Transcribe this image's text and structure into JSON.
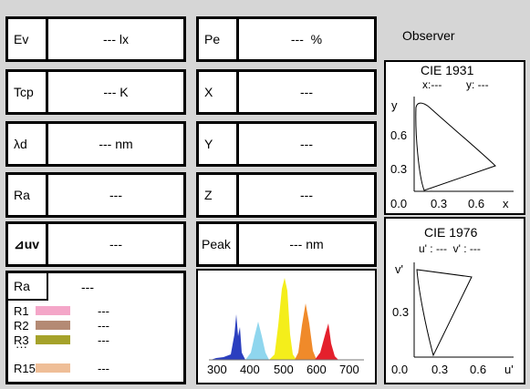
{
  "left_params": [
    {
      "label": "Ev",
      "value": "--- lx"
    },
    {
      "label": "Tcp",
      "value": "--- K"
    },
    {
      "label": "λd",
      "value": "--- nm"
    },
    {
      "label": "Ra",
      "value": "---"
    },
    {
      "label": "⊿uv",
      "value": "---"
    }
  ],
  "mid_params": [
    {
      "label": "Pe",
      "value": "---  %"
    },
    {
      "label": "X",
      "value": "---"
    },
    {
      "label": "Y",
      "value": "---"
    },
    {
      "label": "Z",
      "value": "---"
    },
    {
      "label": "Peak",
      "value": "--- nm"
    }
  ],
  "ra_panel": {
    "label": "Ra",
    "value": "---",
    "rows": [
      {
        "label": "R1",
        "value": "---",
        "color": "#f4a6c8"
      },
      {
        "label": "R2",
        "value": "---",
        "color": "#b48a74"
      },
      {
        "label": "R3",
        "value": "---",
        "color": "#a5a22a"
      },
      {
        "label": "R15",
        "value": "---",
        "color": "#efbe97"
      }
    ],
    "ellipsis": "···"
  },
  "spectrum": {
    "ticks": [
      "300",
      "400",
      "500",
      "600",
      "700"
    ],
    "colors": [
      "#2b3fbf",
      "#8fd6ee",
      "#f4ee1b",
      "#f08a2a",
      "#e4202c"
    ]
  },
  "observer": {
    "label": "Observer"
  },
  "cie1931": {
    "title": "CIE 1931",
    "readout_x": "x:---",
    "readout_y": "y: ---",
    "y_axis": "y",
    "x_axis": "x",
    "y_ticks": [
      "0.6",
      "0.3",
      "0.0"
    ],
    "x_ticks": [
      "0.3",
      "0.6"
    ]
  },
  "cie1976": {
    "title": "CIE 1976",
    "readout": "u' : ---  v' : ---",
    "y_axis": "v'",
    "x_axis": "u'",
    "y_ticks": [
      "0.3"
    ],
    "x_ticks": [
      "0.0",
      "0.3",
      "0.6"
    ]
  }
}
